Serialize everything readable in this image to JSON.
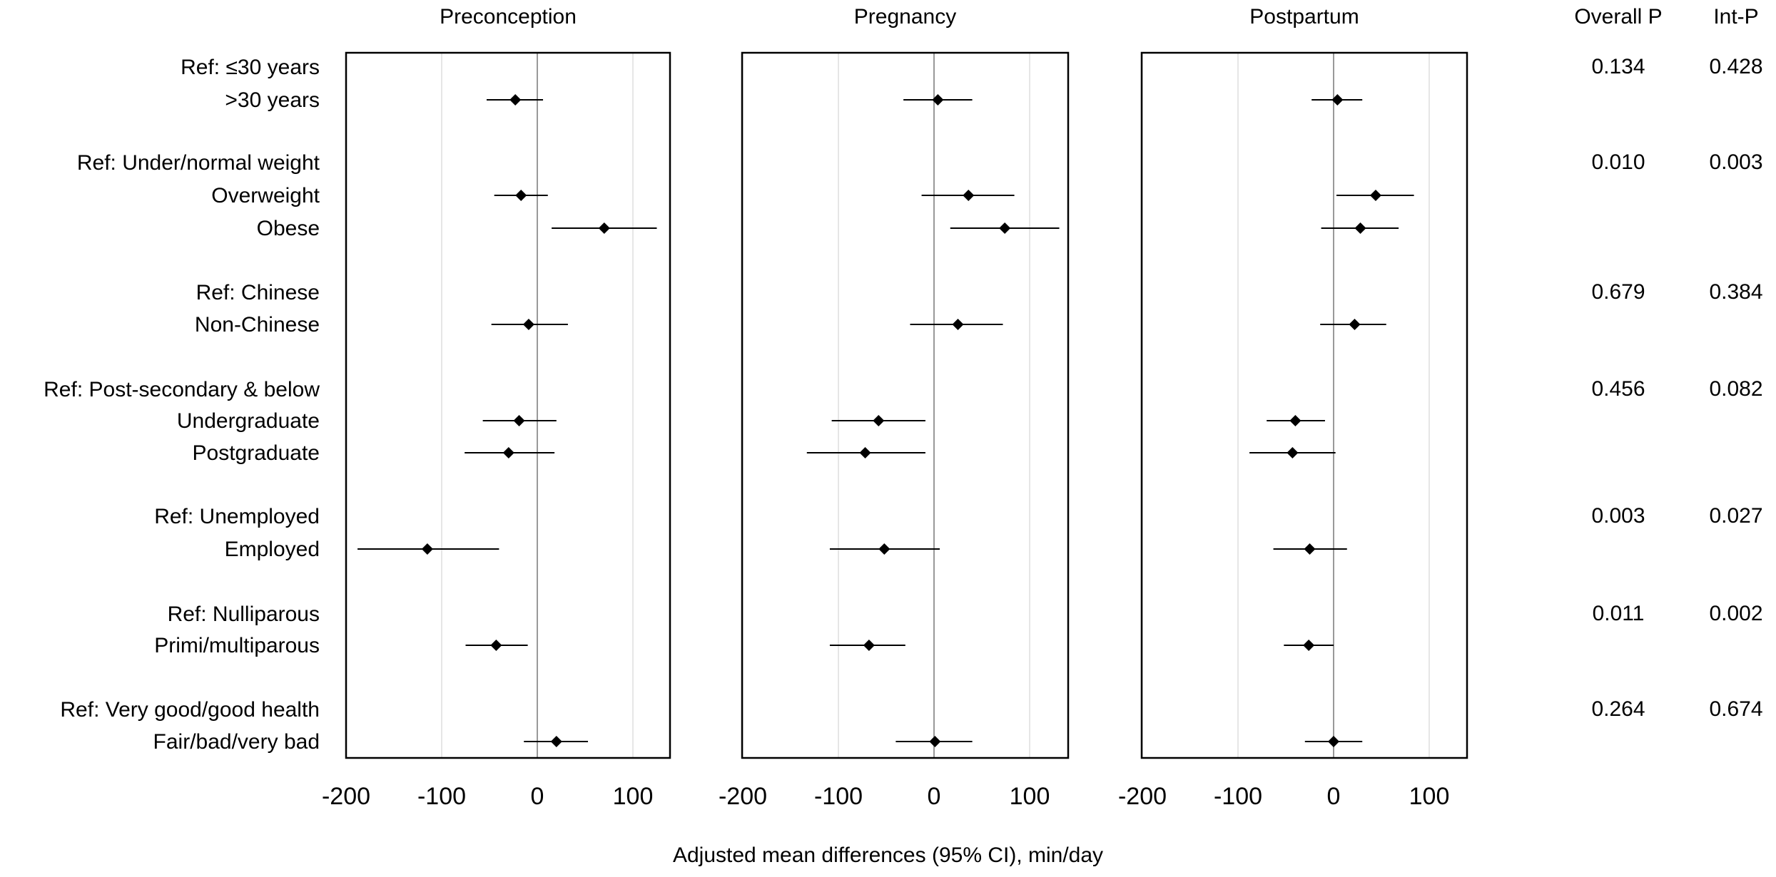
{
  "chart_data": {
    "type": "forest",
    "xlabel": "Adjusted mean differences (95% CI), min/day",
    "xlim": [
      -200,
      135
    ],
    "xticks": [
      -200,
      -100,
      0,
      100
    ],
    "grid": true,
    "column_headers": {
      "overall_p": "Overall P",
      "int_p": "Int-P"
    },
    "panels": [
      {
        "title": "Preconception"
      },
      {
        "title": "Pregnancy"
      },
      {
        "title": "Postpartum"
      }
    ],
    "rows": [
      {
        "label": "Ref: ≤30 years",
        "is_ref": true,
        "overall_p": "0.134",
        "int_p": "0.428"
      },
      {
        "label": ">30 years",
        "is_ref": false,
        "estimates": [
          [
            -23,
            -53,
            6
          ],
          [
            4,
            -32,
            40
          ],
          [
            4,
            -23,
            30
          ]
        ]
      },
      {
        "label": "Ref: Under/normal weight",
        "is_ref": true,
        "overall_p": "0.010",
        "int_p": "0.003"
      },
      {
        "label": "Overweight",
        "is_ref": false,
        "estimates": [
          [
            -17,
            -45,
            11
          ],
          [
            36,
            -13,
            84
          ],
          [
            44,
            3,
            84
          ]
        ]
      },
      {
        "label": "Obese",
        "is_ref": false,
        "estimates": [
          [
            70,
            15,
            125
          ],
          [
            74,
            17,
            131
          ],
          [
            28,
            -13,
            68
          ]
        ]
      },
      {
        "label": "Ref: Chinese",
        "is_ref": true,
        "overall_p": "0.679",
        "int_p": "0.384"
      },
      {
        "label": "Non-Chinese",
        "is_ref": false,
        "estimates": [
          [
            -9,
            -48,
            32
          ],
          [
            25,
            -25,
            72
          ],
          [
            22,
            -14,
            55
          ]
        ]
      },
      {
        "label": "Ref: Post-secondary & below",
        "is_ref": true,
        "overall_p": "0.456",
        "int_p": "0.082"
      },
      {
        "label": "Undergraduate",
        "is_ref": false,
        "estimates": [
          [
            -19,
            -57,
            20
          ],
          [
            -58,
            -107,
            -9
          ],
          [
            -40,
            -70,
            -9
          ]
        ]
      },
      {
        "label": "Postgraduate",
        "is_ref": false,
        "estimates": [
          [
            -30,
            -76,
            18
          ],
          [
            -72,
            -133,
            -9
          ],
          [
            -43,
            -88,
            2
          ]
        ]
      },
      {
        "label": "Ref: Unemployed",
        "is_ref": true,
        "overall_p": "0.003",
        "int_p": "0.027"
      },
      {
        "label": "Employed",
        "is_ref": false,
        "estimates": [
          [
            -115,
            -188,
            -40
          ],
          [
            -52,
            -109,
            6
          ],
          [
            -25,
            -63,
            14
          ]
        ]
      },
      {
        "label": "Ref: Nulliparous",
        "is_ref": true,
        "overall_p": "0.011",
        "int_p": "0.002"
      },
      {
        "label": "Primi/multiparous",
        "is_ref": false,
        "estimates": [
          [
            -43,
            -75,
            -10
          ],
          [
            -68,
            -109,
            -30
          ],
          [
            -26,
            -52,
            0
          ]
        ]
      },
      {
        "label": "Ref: Very good/good health",
        "is_ref": true,
        "overall_p": "0.264",
        "int_p": "0.674"
      },
      {
        "label": "Fair/bad/very bad",
        "is_ref": false,
        "estimates": [
          [
            20,
            -14,
            53
          ],
          [
            1,
            -40,
            40
          ],
          [
            0,
            -30,
            30
          ]
        ]
      }
    ]
  },
  "colors": {
    "marker": "#000000",
    "frame": "#000000",
    "zero_line": "#999999",
    "grid": "#e6e6e6"
  }
}
